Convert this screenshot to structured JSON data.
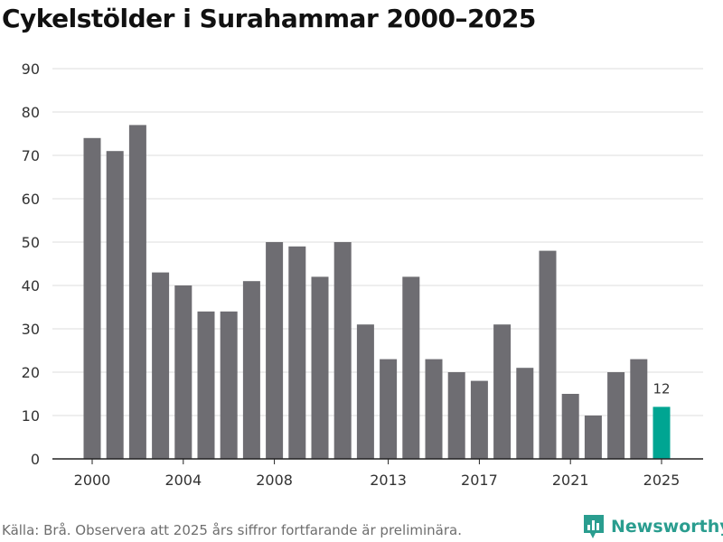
{
  "chart_data": {
    "type": "bar",
    "title": "Cykelstölder i Surahammar 2000–2025",
    "xlabel": "",
    "ylabel": "",
    "ylim": [
      0,
      90
    ],
    "yticks": [
      0,
      10,
      20,
      30,
      40,
      50,
      60,
      70,
      80,
      90
    ],
    "xtick_labels": [
      "2000",
      "2004",
      "2008",
      "2013",
      "2017",
      "2021",
      "2025"
    ],
    "categories": [
      "2000",
      "2001",
      "2002",
      "2003",
      "2004",
      "2005",
      "2006",
      "2007",
      "2008",
      "2009",
      "2010",
      "2011",
      "2012",
      "2013",
      "2014",
      "2015",
      "2016",
      "2017",
      "2018",
      "2019",
      "2020",
      "2021",
      "2022",
      "2023",
      "2024",
      "2025"
    ],
    "values": [
      74,
      71,
      77,
      43,
      40,
      34,
      34,
      41,
      50,
      49,
      42,
      50,
      31,
      23,
      42,
      23,
      20,
      18,
      31,
      21,
      48,
      15,
      10,
      20,
      23,
      12
    ],
    "highlight": {
      "category": "2025",
      "label": "12"
    },
    "colors": {
      "bar": "#6e6d72",
      "highlight": "#00a592",
      "grid": "#dddddd",
      "axis": "#222222",
      "tick_text": "#333333"
    }
  },
  "footer": {
    "source": "Källa: Brå. Observera att 2025 års siffror fortfarande är preliminära."
  },
  "brand": {
    "name": "Newsworthy",
    "icon": "newsworthy-logo-icon",
    "color": "#2a9d8f"
  }
}
